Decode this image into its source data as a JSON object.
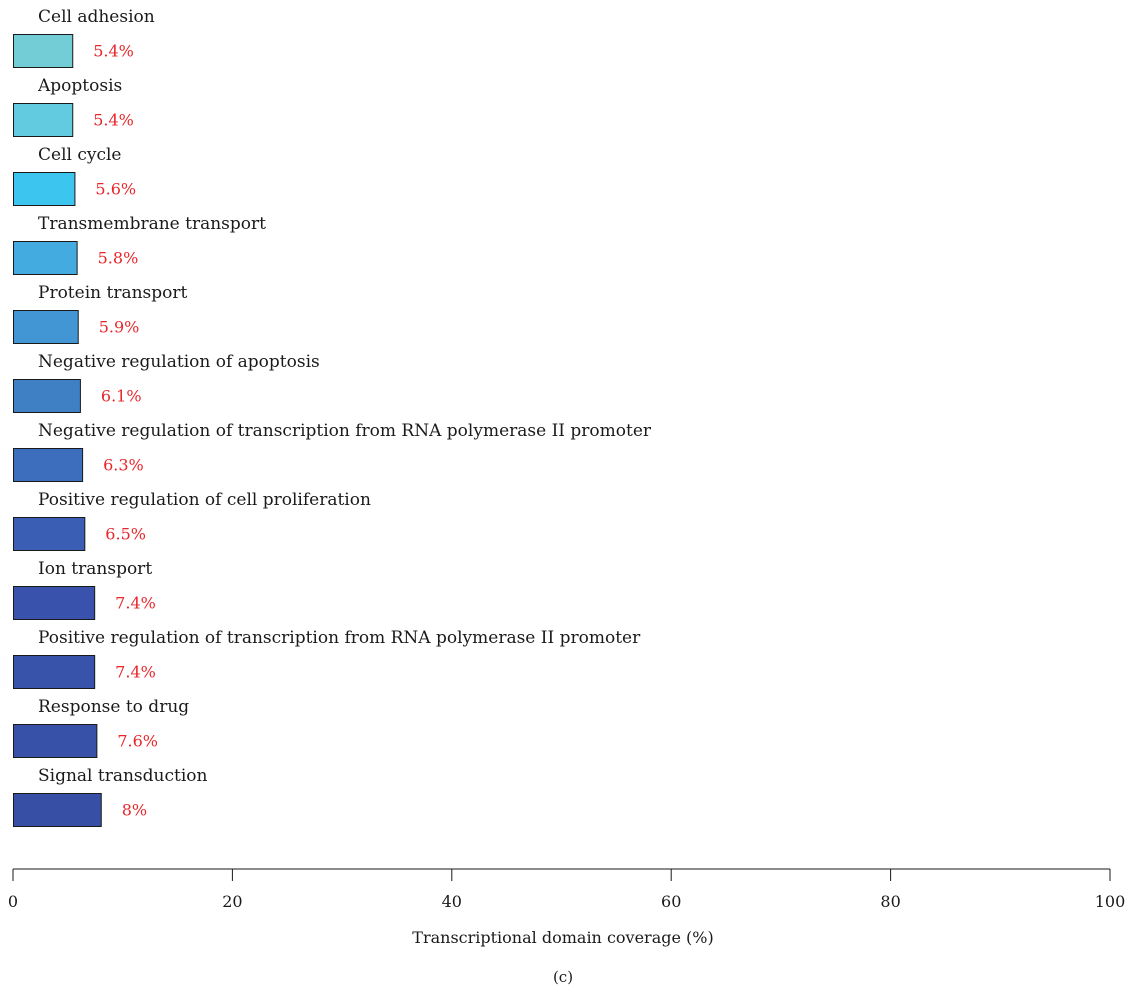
{
  "chart_data": {
    "type": "bar",
    "orientation": "horizontal",
    "categories": [
      "Cell adhesion",
      "Apoptosis",
      "Cell cycle",
      "Transmembrane transport",
      "Protein transport",
      "Negative regulation of apoptosis",
      "Negative regulation of transcription from RNA polymerase II promoter",
      "Positive regulation of cell proliferation",
      "Ion transport",
      "Positive regulation of transcription from RNA polymerase II promoter",
      "Response to drug",
      "Signal transduction"
    ],
    "values": [
      5.4,
      5.4,
      5.6,
      5.8,
      5.9,
      6.1,
      6.3,
      6.5,
      7.4,
      7.4,
      7.6,
      8.0
    ],
    "value_labels": [
      "5.4%",
      "5.4%",
      "5.6%",
      "5.8%",
      "5.9%",
      "6.1%",
      "6.3%",
      "6.5%",
      "7.4%",
      "7.4%",
      "7.6%",
      "8%"
    ],
    "bar_colors": [
      "#72cdd6",
      "#62cbe0",
      "#3cc6ef",
      "#44abe1",
      "#4196d3",
      "#3f7fc4",
      "#3d6dbd",
      "#3a5eb3",
      "#3953ac",
      "#3853aa",
      "#3851a8",
      "#384fa6"
    ],
    "value_label_color": "#e8262b",
    "xlabel": "Transcriptional domain coverage (%)",
    "xlim": [
      0,
      100
    ],
    "xticks": [
      0,
      20,
      40,
      60,
      80,
      100
    ],
    "grid": false,
    "legend": "none"
  },
  "panel_label": "(c)"
}
